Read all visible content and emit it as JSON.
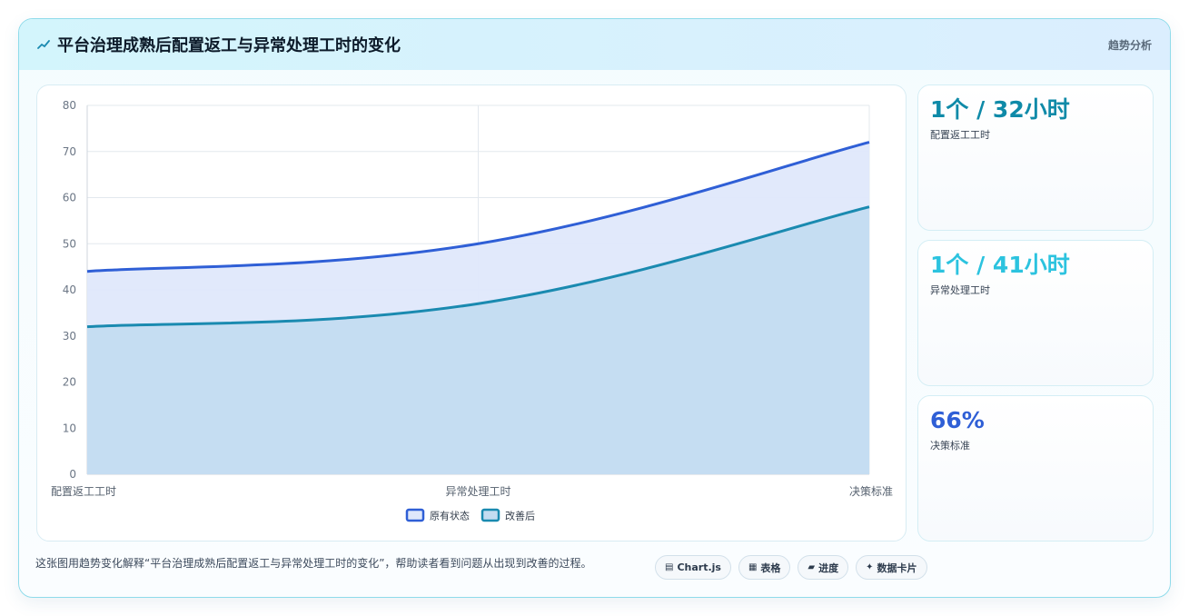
{
  "header": {
    "title": "平台治理成熟后配置返工与异常处理工时的变化",
    "right_label": "趋势分析",
    "icon": "trend-line-icon"
  },
  "colors": {
    "series_before": "#2f5fd6",
    "series_before_fill": "#dfe8fb",
    "series_after": "#1a8ab0",
    "series_after_fill": "#c3dcf1",
    "kpi1": "#0f8aa8",
    "kpi2": "#2cc3df",
    "kpi3": "#2f5fd6"
  },
  "chart_data": {
    "type": "area",
    "categories": [
      "配置返工工时",
      "异常处理工时",
      "决策标准"
    ],
    "series": [
      {
        "name": "原有状态",
        "values": [
          44,
          50,
          72
        ]
      },
      {
        "name": "改善后",
        "values": [
          32,
          37,
          58
        ]
      }
    ],
    "ylim": [
      0,
      80
    ],
    "yticks": [
      "0",
      "10",
      "20",
      "30",
      "40",
      "50",
      "60",
      "70",
      "80"
    ],
    "grid": true,
    "legend_position": "bottom",
    "title": "",
    "xlabel": "",
    "ylabel": ""
  },
  "kpis": [
    {
      "value": "1个 / 32小时",
      "label": "配置返工工时"
    },
    {
      "value": "1个 / 41小时",
      "label": "异常处理工时"
    },
    {
      "value": "66%",
      "label": "决策标准"
    }
  ],
  "footer": {
    "note": "这张图用趋势变化解释“平台治理成熟后配置返工与异常处理工时的变化”，帮助读者看到问题从出现到改善的过程。",
    "chips": [
      {
        "icon": "▤",
        "label": "Chart.js"
      },
      {
        "icon": "▦",
        "label": "表格"
      },
      {
        "icon": "▰",
        "label": "进度"
      },
      {
        "icon": "✦",
        "label": "数据卡片"
      }
    ]
  }
}
